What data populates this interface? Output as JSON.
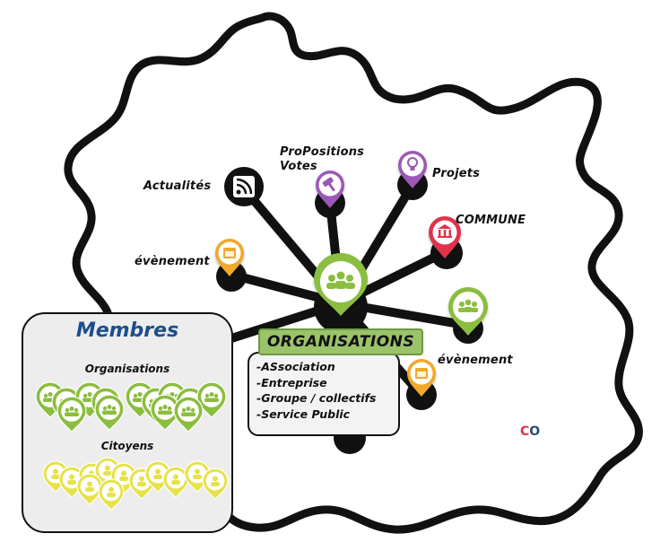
{
  "labels": {
    "actualites": "Actualités",
    "propositions_votes": "ProPositions Votes",
    "projets": "Projets",
    "commune": "COMMUNE",
    "evenement_left": "évènement",
    "evenement_right": "évènement"
  },
  "membres": {
    "title": "Membres",
    "organisations_label": "Organisations",
    "citoyens_label": "Citoyens"
  },
  "organisations": {
    "banner": "ORGANISATIONS",
    "items": [
      "-ASsociation",
      "-Entreprise",
      "-Groupe / collectifs",
      "-Service Public"
    ]
  },
  "logo": {
    "c": "C",
    "o": "O"
  },
  "colors": {
    "green": "#8bbd3f",
    "purple": "#9b59b6",
    "red": "#e0314b",
    "orange": "#f0a92a",
    "yellow": "#e6e24a",
    "blue_title": "#1d4e8c",
    "banner_green": "#9bc36a"
  },
  "icons": {
    "actualites": "rss-icon",
    "propositions": "gavel-icon",
    "projets": "lightbulb-icon",
    "commune": "bank-icon",
    "evenement": "calendar-icon",
    "organisation": "group-icon",
    "citoyen": "person-icon"
  }
}
